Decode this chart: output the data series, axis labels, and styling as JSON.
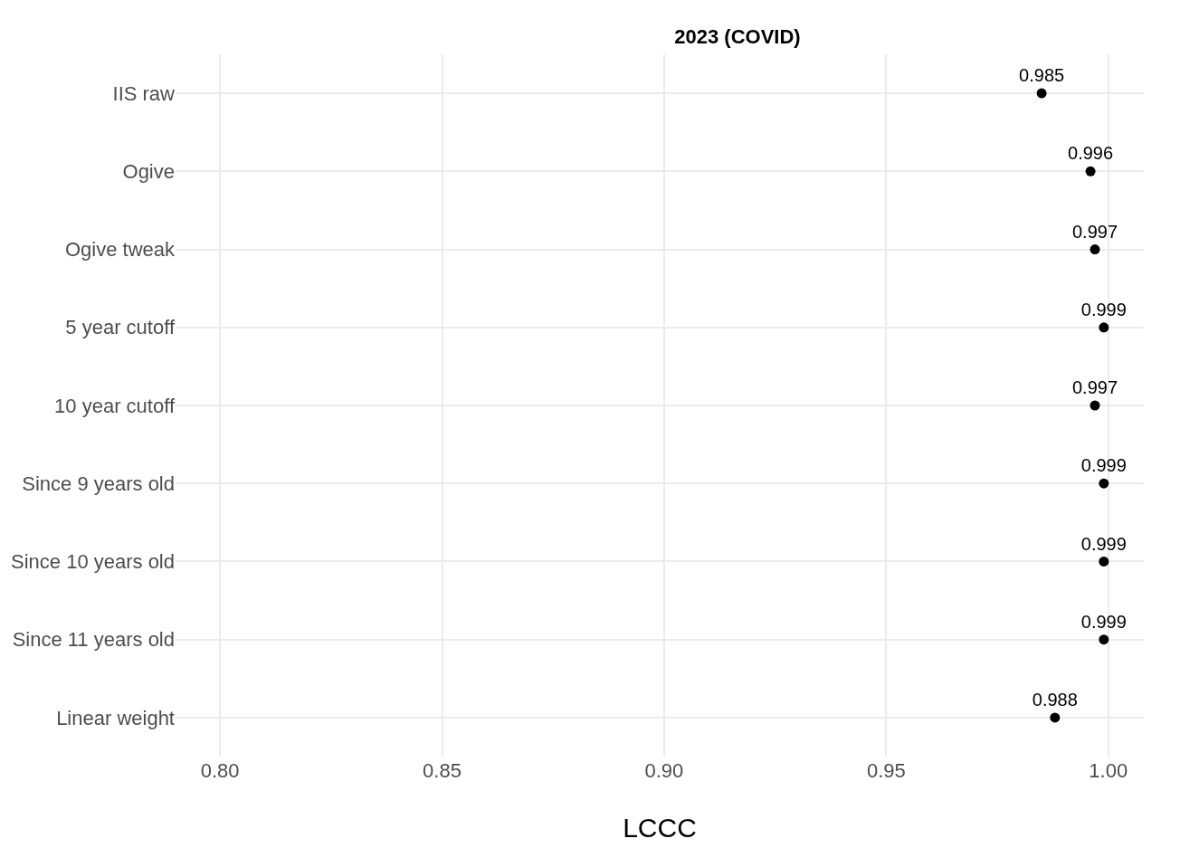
{
  "chart_data": {
    "type": "scatter",
    "orientation": "horizontal",
    "title": "2023 (COVID)",
    "xlabel": "LCCC",
    "categories": [
      "IIS raw",
      "Ogive",
      "Ogive tweak",
      "5 year cutoff",
      "10 year cutoff",
      "Since 9 years old",
      "Since 10 years old",
      "Since 11 years old",
      "Linear weight"
    ],
    "values": [
      0.985,
      0.996,
      0.997,
      0.999,
      0.997,
      0.999,
      0.999,
      0.999,
      0.988
    ],
    "color": "#000000",
    "marker": "circle",
    "data_labels": true,
    "grid": true,
    "xlim": [
      0.79,
      1.008
    ],
    "xticks": [
      {
        "value": 0.8,
        "label": "0.80"
      },
      {
        "value": 0.85,
        "label": "0.85"
      },
      {
        "value": 0.9,
        "label": "0.90"
      },
      {
        "value": 0.95,
        "label": "0.95"
      },
      {
        "value": 1.0,
        "label": "1.00"
      }
    ]
  }
}
